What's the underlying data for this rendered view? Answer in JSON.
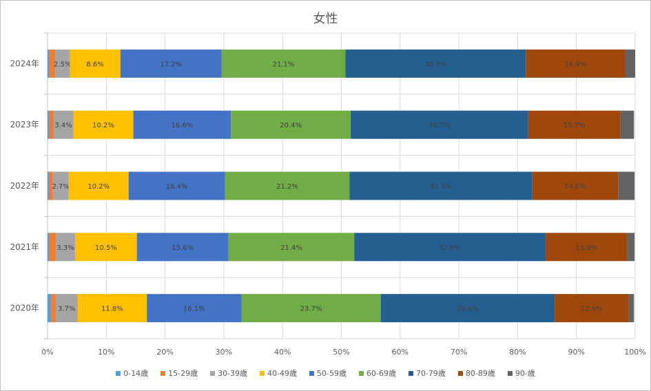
{
  "chart_data": {
    "type": "bar",
    "orientation": "horizontal",
    "stacked": "percent",
    "title": "女性",
    "xlabel": "",
    "ylabel": "",
    "xlim": [
      0,
      100
    ],
    "x_ticks": [
      "0%",
      "10%",
      "20%",
      "30%",
      "40%",
      "50%",
      "60%",
      "70%",
      "80%",
      "90%",
      "100%"
    ],
    "grid": true,
    "legend_position": "bottom",
    "categories": [
      "2024年",
      "2023年",
      "2022年",
      "2021年",
      "2020年"
    ],
    "series": [
      {
        "name": "0-14歳",
        "color": "#5b9bd5",
        "values": [
          0.3,
          0.3,
          0.3,
          0.3,
          0.6
        ],
        "labels": [
          "",
          "",
          "",
          "",
          ""
        ]
      },
      {
        "name": "15-29歳",
        "color": "#ed7d31",
        "values": [
          1.0,
          0.7,
          0.6,
          1.1,
          0.8
        ],
        "labels": [
          "",
          "",
          "",
          "",
          ""
        ]
      },
      {
        "name": "30-39歳",
        "color": "#a5a5a5",
        "values": [
          2.5,
          3.4,
          2.7,
          3.3,
          3.7
        ],
        "labels": [
          "2.5%",
          "3.4%",
          "2.7%",
          "3.3%",
          "3.7%"
        ]
      },
      {
        "name": "40-49歳",
        "color": "#ffc000",
        "values": [
          8.6,
          10.2,
          10.2,
          10.5,
          11.8
        ],
        "labels": [
          "8.6%",
          "10.2%",
          "10.2%",
          "10.5%",
          "11.8%"
        ]
      },
      {
        "name": "50-59歳",
        "color": "#4472c4",
        "values": [
          17.2,
          16.6,
          16.4,
          15.6,
          16.1
        ],
        "labels": [
          "17.2%",
          "16.6%",
          "16.4%",
          "15.6%",
          "16.1%"
        ]
      },
      {
        "name": "60-69歳",
        "color": "#70ad47",
        "values": [
          21.1,
          20.4,
          21.2,
          21.4,
          23.7
        ],
        "labels": [
          "21.1%",
          "20.4%",
          "21.2%",
          "21.4%",
          "23.7%"
        ]
      },
      {
        "name": "70-79歳",
        "color": "#255e91",
        "values": [
          30.7,
          30.2,
          31.1,
          32.6,
          29.6
        ],
        "labels": [
          "30.7%",
          "30.2%",
          "31.1%",
          "32.6%",
          "29.6%"
        ]
      },
      {
        "name": "80-89歳",
        "color": "#9e480e",
        "values": [
          16.9,
          15.7,
          14.6,
          13.8,
          12.6
        ],
        "labels": [
          "16.9%",
          "15.7%",
          "14.6%",
          "13.8%",
          "12.6%"
        ]
      },
      {
        "name": "90-歳",
        "color": "#636363",
        "values": [
          1.7,
          2.3,
          2.8,
          1.3,
          0.9
        ],
        "labels": [
          "",
          "",
          "",
          "",
          ""
        ]
      }
    ]
  }
}
